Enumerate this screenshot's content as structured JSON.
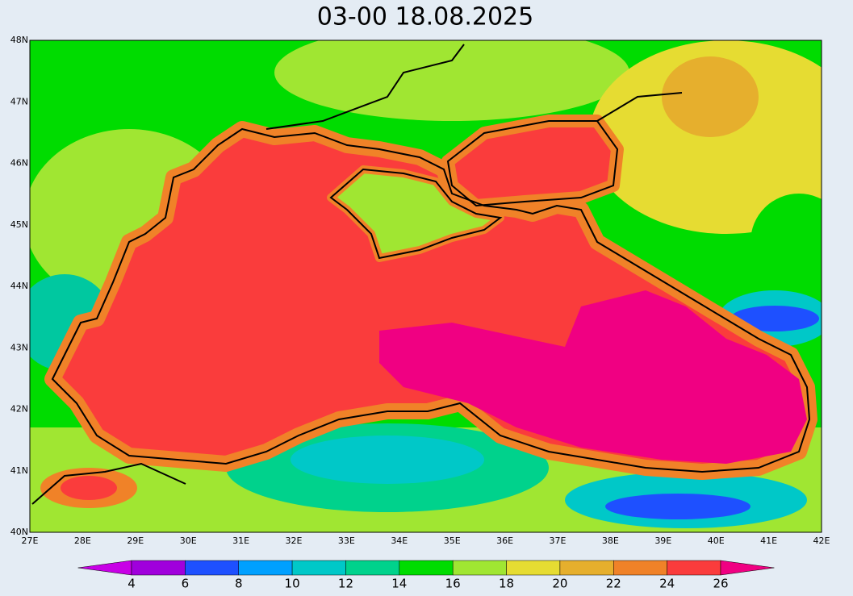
{
  "map": {
    "title": "03-00    18.08.2025",
    "lat_labels": [
      "48N",
      "47N",
      "46N",
      "45N",
      "44N",
      "43N",
      "42N",
      "41N",
      "40N"
    ],
    "lon_labels": [
      "27E",
      "28E",
      "29E",
      "30E",
      "31E",
      "32E",
      "33E",
      "34E",
      "35E",
      "36E",
      "37E",
      "38E",
      "39E",
      "40E",
      "41E",
      "42E"
    ],
    "colorbar": {
      "labels": [
        4,
        6,
        8,
        10,
        12,
        14,
        16,
        18,
        20,
        22,
        24,
        26
      ],
      "colors": [
        "#c800e6",
        "#a000dc",
        "#1e50ff",
        "#00a0ff",
        "#00c8c8",
        "#00d28c",
        "#00dc00",
        "#a0e632",
        "#e6dc32",
        "#e6af2d",
        "#f08228",
        "#fa3c3c",
        "#f00082"
      ]
    }
  }
}
